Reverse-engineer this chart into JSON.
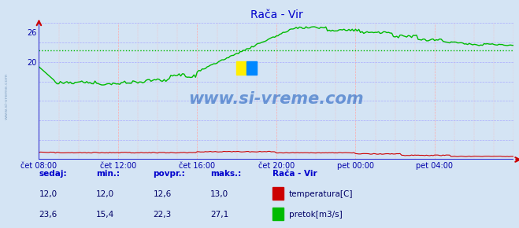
{
  "title": "Rača - Vir",
  "bg_color": "#d4e4f4",
  "plot_bg_color": "#d4e4f4",
  "grid_color_v": "#ffaaaa",
  "grid_color_h": "#aaaaff",
  "x_min": 0,
  "x_max": 288,
  "y_min": 0,
  "y_max": 28,
  "yticks": [
    20,
    26
  ],
  "xtick_labels": [
    "čet 08:00",
    "čet 12:00",
    "čet 16:00",
    "čet 20:00",
    "pet 00:00",
    "pet 04:00"
  ],
  "xtick_positions": [
    0,
    48,
    96,
    144,
    192,
    240
  ],
  "arrow_color": "#cc0000",
  "temp_color": "#cc0000",
  "flow_color": "#00bb00",
  "avg_flow": 22.3,
  "title_color": "#0000cc",
  "axis_label_color": "#0000aa",
  "table_header_color": "#0000cc",
  "table_value_color": "#000066",
  "legend_title": "Rača - Vir",
  "sedaj_label": "sedaj:",
  "min_label": "min.:",
  "povpr_label": "povpr.:",
  "maks_label": "maks.:",
  "temp_sedaj": "12,0",
  "temp_min": "12,0",
  "temp_povpr": "12,6",
  "temp_maks": "13,0",
  "flow_sedaj": "23,6",
  "flow_min": "15,4",
  "flow_povpr": "22,3",
  "flow_maks": "27,1",
  "temp_legend": "temperatura[C]",
  "flow_legend": "pretok[m3/s]",
  "watermark": "www.si-vreme.com",
  "watermark_color": "#1155bb",
  "side_watermark": "www.si-vreme.com",
  "side_watermark_color": "#7799bb"
}
